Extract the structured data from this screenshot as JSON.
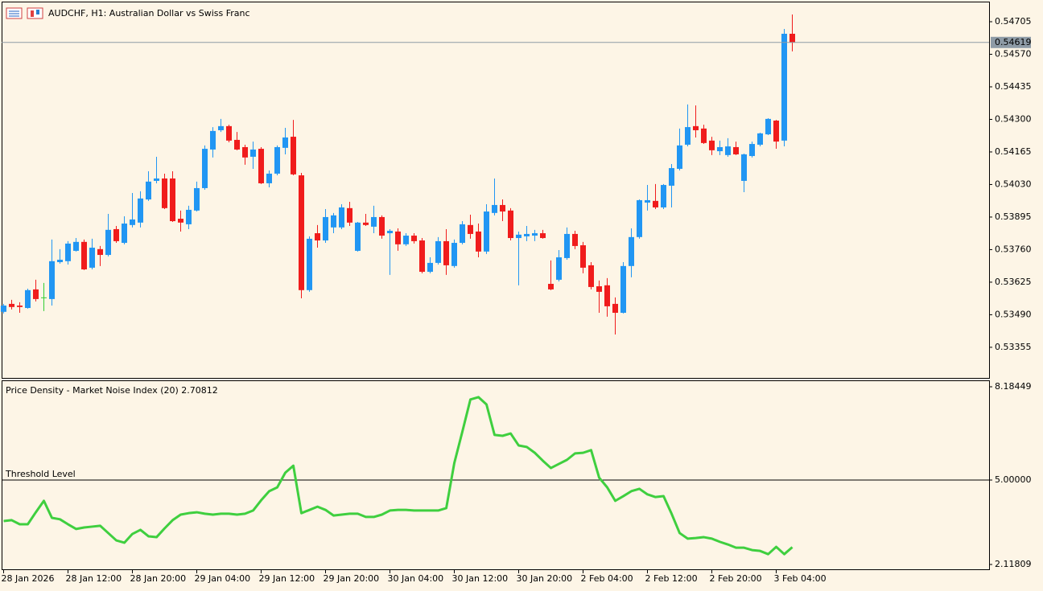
{
  "chart_data": [
    {
      "type": "candlestick",
      "title": "AUDCHF, H1:  Australian Dollar vs Swiss Franc",
      "categories": [
        "28 Jan 2026",
        null,
        null,
        null,
        null,
        null,
        null,
        null,
        "28 Jan 12:00",
        null,
        null,
        null,
        null,
        null,
        null,
        null,
        "28 Jan 20:00",
        null,
        null,
        null,
        null,
        null,
        null,
        null,
        "29 Jan 04:00",
        null,
        null,
        null,
        null,
        null,
        null,
        null,
        "29 Jan 12:00",
        null,
        null,
        null,
        null,
        null,
        null,
        null,
        "29 Jan 20:00",
        null,
        null,
        null,
        null,
        null,
        null,
        null,
        "30 Jan 04:00",
        null,
        null,
        null,
        null,
        null,
        null,
        null,
        "30 Jan 12:00",
        null,
        null,
        null,
        null,
        null,
        null,
        null,
        "30 Jan 20:00",
        null,
        null,
        null,
        null,
        null,
        null,
        null,
        "2 Feb 04:00",
        null,
        null,
        null,
        null,
        null,
        null,
        null,
        "2 Feb 12:00",
        null,
        null,
        null,
        null,
        null,
        null,
        null,
        "2 Feb 20:00",
        null,
        null,
        null,
        null,
        null,
        null,
        null,
        "3 Feb 04:00",
        null,
        null
      ],
      "open": [
        0.53502,
        0.53535,
        0.53528,
        0.53518,
        0.53595,
        0.53562,
        0.53555,
        0.53708,
        0.53712,
        0.53755,
        0.53792,
        0.53685,
        0.53762,
        0.53738,
        0.53845,
        0.53788,
        0.53862,
        0.53872,
        0.53968,
        0.54045,
        0.54055,
        0.54055,
        0.53888,
        0.53865,
        0.53922,
        0.54015,
        0.54175,
        0.54255,
        0.54272,
        0.54215,
        0.54185,
        0.54145,
        0.54178,
        0.54035,
        0.54075,
        0.54182,
        0.54228,
        0.54068,
        0.53592,
        0.53828,
        0.53798,
        0.53852,
        0.53852,
        0.53932,
        0.53755,
        0.53872,
        0.53855,
        0.53895,
        0.53828,
        0.53835,
        0.53782,
        0.53818,
        0.53798,
        0.53668,
        0.53705,
        0.53795,
        0.53692,
        0.53788,
        0.53862,
        0.53835,
        0.53752,
        0.53912,
        0.53945,
        0.53922,
        0.53808,
        0.53815,
        0.53818,
        0.53828,
        0.53618,
        0.53635,
        0.53725,
        0.53825,
        0.53778,
        0.53695,
        0.53608,
        0.53612,
        0.53535,
        0.53498,
        0.53692,
        0.53812,
        0.53955,
        0.53962,
        0.53935,
        0.54025,
        0.54095,
        0.54195,
        0.54272,
        0.54262,
        0.54212,
        0.54168,
        0.54152,
        0.54185,
        0.54045,
        0.54148,
        0.54195,
        0.54238,
        0.54295,
        0.54212,
        0.54655
      ],
      "high": [
        0.53535,
        0.53552,
        0.53542,
        0.53598,
        0.53635,
        0.53622,
        0.53802,
        0.53762,
        0.53795,
        0.53808,
        0.53802,
        0.53805,
        0.53775,
        0.53908,
        0.53858,
        0.53898,
        0.53995,
        0.54002,
        0.54085,
        0.54145,
        0.54075,
        0.54085,
        0.53922,
        0.53942,
        0.54042,
        0.54192,
        0.54268,
        0.54302,
        0.54278,
        0.54248,
        0.54195,
        0.54208,
        0.54185,
        0.54088,
        0.54192,
        0.54265,
        0.54298,
        0.54078,
        0.53815,
        0.53862,
        0.53928,
        0.53912,
        0.53948,
        0.53958,
        0.53875,
        0.53908,
        0.53942,
        0.53902,
        0.53845,
        0.53848,
        0.53828,
        0.53828,
        0.53808,
        0.53728,
        0.53812,
        0.53845,
        0.53802,
        0.53878,
        0.53905,
        0.53868,
        0.53948,
        0.54055,
        0.53968,
        0.53932,
        0.53835,
        0.53858,
        0.53842,
        0.53842,
        0.53715,
        0.53758,
        0.53852,
        0.53838,
        0.53792,
        0.53708,
        0.53632,
        0.53642,
        0.53562,
        0.53708,
        0.53848,
        0.53968,
        0.54028,
        0.54032,
        0.54032,
        0.54115,
        0.54262,
        0.54362,
        0.54358,
        0.54278,
        0.54228,
        0.54212,
        0.54222,
        0.54208,
        0.54158,
        0.54208,
        0.54245,
        0.54305,
        0.54298,
        0.54675,
        0.54735
      ],
      "low": [
        0.53495,
        0.53512,
        0.53498,
        0.53515,
        0.53545,
        0.53505,
        0.53528,
        0.53702,
        0.53698,
        0.53752,
        0.53675,
        0.53678,
        0.53692,
        0.53732,
        0.53788,
        0.53782,
        0.53852,
        0.53852,
        0.53962,
        0.54035,
        0.53928,
        0.53875,
        0.53835,
        0.53845,
        0.53918,
        0.54008,
        0.54142,
        0.54248,
        0.54205,
        0.54172,
        0.54112,
        0.54095,
        0.54032,
        0.54018,
        0.54068,
        0.54155,
        0.54068,
        0.53558,
        0.53585,
        0.53768,
        0.53788,
        0.53828,
        0.53845,
        0.53858,
        0.53752,
        0.53858,
        0.53828,
        0.53805,
        0.53655,
        0.53755,
        0.53775,
        0.53785,
        0.53662,
        0.53662,
        0.53698,
        0.53655,
        0.53685,
        0.53782,
        0.53805,
        0.53728,
        0.53742,
        0.53902,
        0.53878,
        0.53798,
        0.53612,
        0.53795,
        0.53795,
        0.53805,
        0.53592,
        0.53628,
        0.53718,
        0.53762,
        0.53662,
        0.53595,
        0.53498,
        0.53482,
        0.53408,
        0.53495,
        0.53645,
        0.53805,
        0.53922,
        0.53928,
        0.53928,
        0.53935,
        0.54088,
        0.54188,
        0.54225,
        0.54198,
        0.54152,
        0.54152,
        0.54145,
        0.54152,
        0.53998,
        0.54142,
        0.54188,
        0.54235,
        0.54178,
        0.54188,
        0.54582
      ],
      "close": [
        0.53528,
        0.53522,
        0.53522,
        0.53592,
        0.53555,
        0.53562,
        0.53712,
        0.53718,
        0.53785,
        0.53792,
        0.53678,
        0.53768,
        0.53738,
        0.53842,
        0.53795,
        0.53868,
        0.53885,
        0.53972,
        0.54042,
        0.54055,
        0.53932,
        0.53878,
        0.53872,
        0.53925,
        0.54015,
        0.54178,
        0.54252,
        0.54272,
        0.54212,
        0.54175,
        0.54142,
        0.54175,
        0.54035,
        0.54075,
        0.54185,
        0.54225,
        0.54072,
        0.53592,
        0.53805,
        0.53798,
        0.53895,
        0.53902,
        0.53935,
        0.53872,
        0.53872,
        0.53862,
        0.53895,
        0.53818,
        0.53838,
        0.53782,
        0.53818,
        0.53795,
        0.53668,
        0.53705,
        0.53795,
        0.53695,
        0.53788,
        0.53865,
        0.53825,
        0.53752,
        0.53918,
        0.53945,
        0.53918,
        0.53808,
        0.53822,
        0.53825,
        0.53828,
        0.53808,
        0.53595,
        0.53728,
        0.53825,
        0.53775,
        0.53685,
        0.53605,
        0.53585,
        0.53525,
        0.53498,
        0.53692,
        0.53812,
        0.53965,
        0.53965,
        0.53935,
        0.54028,
        0.54098,
        0.54192,
        0.54268,
        0.54255,
        0.54202,
        0.54172,
        0.54185,
        0.54188,
        0.54155,
        0.54155,
        0.54198,
        0.54242,
        0.54302,
        0.54208,
        0.54655,
        0.54619
      ],
      "up_color": "#2196f3",
      "down_color": "#f01c1c",
      "doji_color": "#32cd32",
      "current_price": 0.54619,
      "current_price_color": "#8e9ba6",
      "ylim": [
        0.53228,
        0.54785
      ],
      "yticks": [
        0.54705,
        {
          "value": 0.5457,
          "label": "0.54570"
        },
        0.54435,
        {
          "value": 0.543,
          "label": "0.54300"
        },
        0.54165,
        {
          "value": 0.5403,
          "label": "0.54030"
        },
        0.53895,
        {
          "value": 0.5376,
          "label": "0.53760"
        },
        0.53625,
        {
          "value": 0.5349,
          "label": "0.53490"
        },
        0.53355
      ],
      "grid": false
    },
    {
      "type": "line",
      "title": "Price Density - Market Noise Index (20)",
      "series": [
        {
          "name": "Price Density",
          "color": "#3fcf3f",
          "values": [
            3.6,
            3.63,
            3.49,
            3.49,
            3.9,
            4.29,
            3.71,
            3.66,
            3.49,
            3.33,
            3.38,
            3.41,
            3.44,
            3.19,
            2.94,
            2.86,
            3.16,
            3.3,
            3.08,
            3.05,
            3.35,
            3.63,
            3.82,
            3.87,
            3.9,
            3.85,
            3.82,
            3.85,
            3.85,
            3.82,
            3.85,
            3.96,
            4.31,
            4.62,
            4.75,
            5.25,
            5.49,
            3.87,
            3.98,
            4.09,
            3.98,
            3.79,
            3.82,
            3.85,
            3.85,
            3.74,
            3.74,
            3.82,
            3.96,
            3.98,
            3.98,
            3.96,
            3.96,
            3.96,
            3.96,
            4.04,
            5.58,
            6.65,
            7.75,
            7.83,
            7.58,
            6.54,
            6.51,
            6.59,
            6.18,
            6.13,
            5.93,
            5.66,
            5.41,
            5.55,
            5.69,
            5.91,
            5.93,
            6.02,
            5.08,
            4.75,
            4.29,
            4.45,
            4.62,
            4.7,
            4.51,
            4.42,
            4.45,
            3.85,
            3.19,
            3.0,
            3.02,
            3.05,
            3.0,
            2.89,
            2.8,
            2.69,
            2.69,
            2.61,
            2.58,
            2.47,
            2.72,
            2.47,
            2.70812
          ]
        }
      ],
      "threshold": {
        "value": 5,
        "label": "Threshold Level"
      },
      "ylim": [
        2.11809,
        8.18449
      ],
      "yticks": [
        8.18449,
        {
          "value": 5,
          "label": "5.00000"
        },
        2.11809
      ],
      "grid": false
    }
  ]
}
